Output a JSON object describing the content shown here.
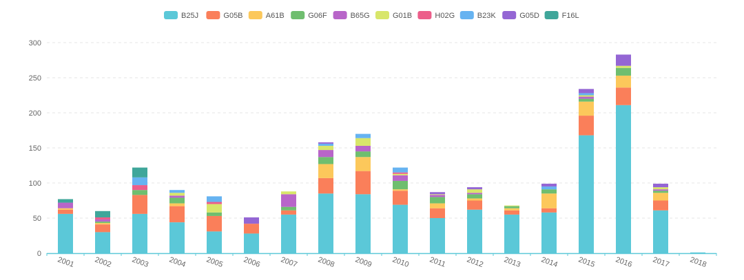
{
  "chart_data": {
    "type": "bar",
    "stacked": true,
    "title": "",
    "xlabel": "",
    "ylabel": "",
    "ylim": [
      0,
      300
    ],
    "yticks": [
      0,
      50,
      100,
      150,
      200,
      250,
      300
    ],
    "grid": true,
    "legend_position": "top",
    "categories": [
      "2001",
      "2002",
      "2003",
      "2004",
      "2005",
      "2006",
      "2007",
      "2008",
      "2009",
      "2010",
      "2011",
      "2012",
      "2013",
      "2014",
      "2015",
      "2016",
      "2017",
      "2018"
    ],
    "series": [
      {
        "name": "B25J",
        "color": "#5bc8d8",
        "values": [
          56,
          30,
          56,
          44,
          31,
          28,
          55,
          85,
          84,
          69,
          50,
          62,
          55,
          58,
          168,
          211,
          61,
          1
        ]
      },
      {
        "name": "G05B",
        "color": "#fa7f5a",
        "values": [
          6,
          11,
          27,
          23,
          22,
          14,
          6,
          22,
          33,
          20,
          14,
          13,
          6,
          6,
          28,
          25,
          14,
          0
        ]
      },
      {
        "name": "A61B",
        "color": "#fcc85b",
        "values": [
          2,
          2,
          0,
          4,
          0,
          0,
          0,
          20,
          20,
          2,
          7,
          3,
          3,
          21,
          20,
          17,
          11,
          0
        ]
      },
      {
        "name": "G06F",
        "color": "#6fbe6f",
        "values": [
          0,
          2,
          7,
          8,
          5,
          0,
          5,
          10,
          8,
          12,
          9,
          6,
          3,
          6,
          4,
          11,
          3,
          0
        ]
      },
      {
        "name": "B65G",
        "color": "#b865c9",
        "values": [
          8,
          3,
          0,
          3,
          0,
          0,
          18,
          10,
          8,
          8,
          3,
          2,
          0,
          0,
          3,
          0,
          2,
          0
        ]
      },
      {
        "name": "G01B",
        "color": "#d8e66a",
        "values": [
          0,
          0,
          0,
          4,
          12,
          0,
          4,
          6,
          11,
          2,
          1,
          5,
          1,
          0,
          2,
          3,
          3,
          0
        ]
      },
      {
        "name": "H02G",
        "color": "#ec5e8a",
        "values": [
          0,
          3,
          7,
          0,
          3,
          0,
          0,
          0,
          0,
          2,
          0,
          0,
          0,
          0,
          0,
          0,
          0,
          0
        ]
      },
      {
        "name": "B23K",
        "color": "#66b3f1",
        "values": [
          0,
          0,
          11,
          4,
          8,
          0,
          0,
          3,
          6,
          7,
          0,
          0,
          0,
          4,
          3,
          0,
          0,
          0
        ]
      },
      {
        "name": "G05D",
        "color": "#9466d4",
        "values": [
          0,
          0,
          0,
          0,
          0,
          9,
          0,
          2,
          0,
          0,
          3,
          3,
          0,
          4,
          6,
          16,
          5,
          0
        ]
      },
      {
        "name": "F16L",
        "color": "#3fa69a",
        "values": [
          5,
          9,
          14,
          0,
          0,
          0,
          0,
          0,
          0,
          0,
          0,
          0,
          0,
          0,
          0,
          0,
          0,
          0
        ]
      }
    ]
  }
}
